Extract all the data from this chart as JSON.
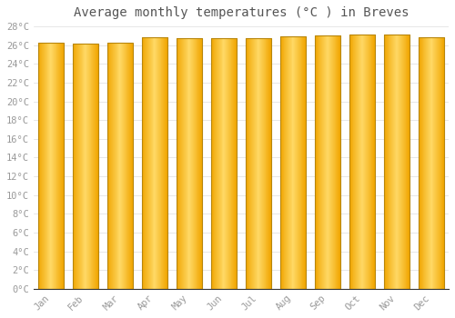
{
  "title": "Average monthly temperatures (°C ) in Breves",
  "months": [
    "Jan",
    "Feb",
    "Mar",
    "Apr",
    "May",
    "Jun",
    "Jul",
    "Aug",
    "Sep",
    "Oct",
    "Nov",
    "Dec"
  ],
  "temperatures": [
    26.3,
    26.2,
    26.3,
    26.8,
    26.7,
    26.7,
    26.7,
    26.9,
    27.0,
    27.1,
    27.1,
    26.8
  ],
  "ylim": [
    0,
    28
  ],
  "yticks": [
    0,
    2,
    4,
    6,
    8,
    10,
    12,
    14,
    16,
    18,
    20,
    22,
    24,
    26,
    28
  ],
  "ytick_labels": [
    "0°C",
    "2°C",
    "4°C",
    "6°C",
    "8°C",
    "10°C",
    "12°C",
    "14°C",
    "16°C",
    "18°C",
    "20°C",
    "22°C",
    "24°C",
    "26°C",
    "28°C"
  ],
  "bar_color_center": "#FFD966",
  "bar_color_edge": "#F0A500",
  "bar_border_color": "#B8860B",
  "background_color": "#FFFFFF",
  "plot_bg_color": "#FFFFFF",
  "grid_color": "#DDDDDD",
  "title_fontsize": 10,
  "tick_fontsize": 7.5,
  "tick_color": "#999999",
  "title_color": "#555555",
  "bar_width": 0.75
}
